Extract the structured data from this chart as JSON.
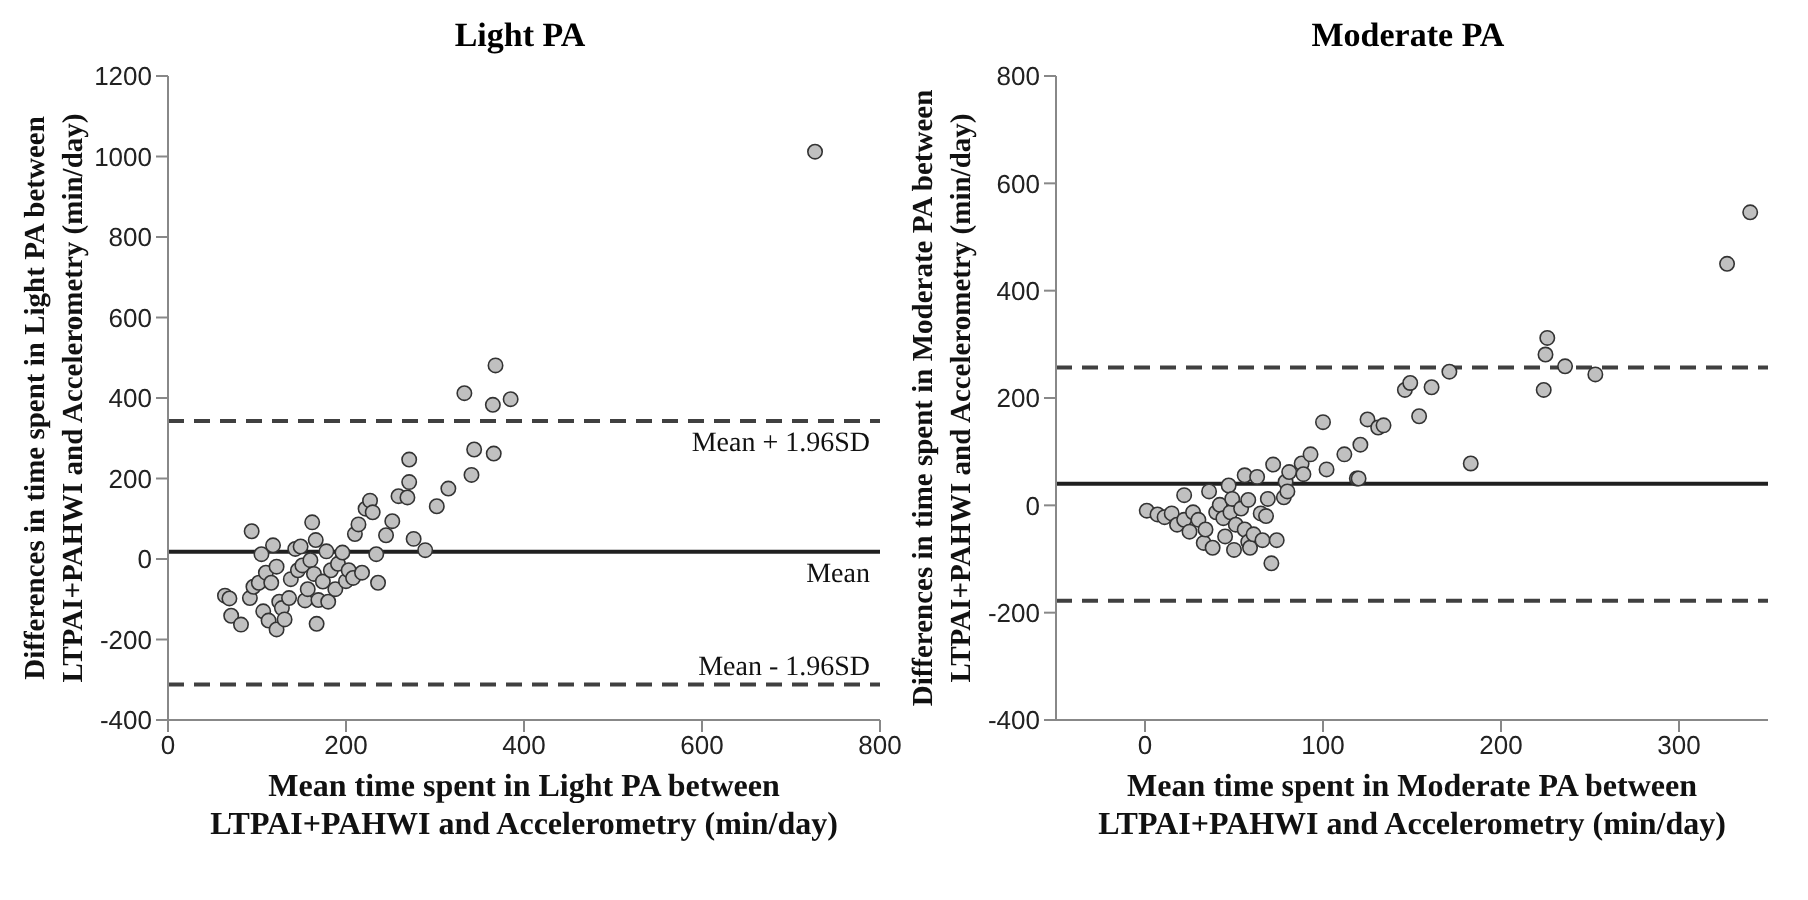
{
  "chart_data": [
    {
      "type": "scatter",
      "title": "Light PA",
      "xlabel": "Mean time spent in Light PA between\nLTPAI+PAHWI and Accelerometry (min/day)",
      "ylabel": "Differences in time spent in Light PA between\nLTPAI+PAHWI and Accelerometry (min/day)",
      "xlim": [
        0,
        800
      ],
      "xticks": [
        0,
        200,
        400,
        600,
        800
      ],
      "ylim": [
        -400,
        1200
      ],
      "yticks": [
        -400,
        -200,
        0,
        200,
        400,
        600,
        800,
        1000,
        1200
      ],
      "grid": false,
      "legend": false,
      "marker": "circle",
      "series": [
        {
          "color": "#c0c0c0",
          "x": [
            64,
            69,
            71,
            82,
            92,
            94,
            96,
            102,
            105,
            107,
            110,
            113,
            116,
            118,
            122,
            122,
            125,
            128,
            131,
            136,
            138,
            143,
            146,
            149,
            151,
            154,
            157,
            160,
            162,
            164,
            166,
            167,
            169,
            174,
            178,
            180,
            183,
            188,
            191,
            196,
            200,
            203,
            208,
            210,
            214,
            218,
            222,
            227,
            230,
            234,
            236,
            245,
            252,
            259,
            269,
            271,
            276,
            289,
            302,
            315,
            341,
            271,
            344,
            366,
            333,
            365,
            385,
            368,
            727
          ],
          "values": [
            -91,
            -98,
            -141,
            -163,
            -97,
            69,
            -69,
            -59,
            12,
            -130,
            -34,
            -153,
            -59,
            34,
            -19,
            -175,
            -106,
            -122,
            -150,
            -97,
            -50,
            25,
            -28,
            31,
            -16,
            -103,
            -75,
            -3,
            91,
            -37,
            47,
            -161,
            -102,
            -56,
            19,
            -106,
            -28,
            -75,
            -12,
            16,
            -55,
            -28,
            -47,
            62,
            86,
            -34,
            125,
            145,
            116,
            12,
            -59,
            59,
            94,
            156,
            153,
            191,
            50,
            22,
            131,
            175,
            209,
            247,
            272,
            262,
            412,
            383,
            397,
            481,
            1012
          ]
        }
      ],
      "ref_lines": [
        {
          "axis": "y",
          "value": 343,
          "label": "Mean + 1.96SD",
          "color": "#404040",
          "line_style": "dashed"
        },
        {
          "axis": "y",
          "value": 18,
          "label": "Mean",
          "color": "#202020",
          "line_style": "solid"
        },
        {
          "axis": "y",
          "value": -312,
          "label": "Mean - 1.96SD",
          "color": "#404040",
          "line_style": "dashed"
        }
      ]
    },
    {
      "type": "scatter",
      "title": "Moderate PA",
      "xlabel": "Mean time spent in Moderate PA between\nLTPAI+PAHWI and Accelerometry (min/day)",
      "ylabel": "Differences in time spent in Moderate PA between\nLTPAI+PAHWI and Accelerometry (min/day)",
      "xlim": [
        -50,
        350
      ],
      "xticks": [
        0,
        100,
        200,
        300
      ],
      "ylim": [
        -400,
        800
      ],
      "yticks": [
        -400,
        -200,
        0,
        200,
        400,
        600,
        800
      ],
      "grid": false,
      "legend": false,
      "marker": "circle",
      "series": [
        {
          "color": "#c0c0c0",
          "x": [
            1,
            7,
            11,
            15,
            18,
            22,
            22,
            25,
            27,
            30,
            33,
            34,
            36,
            38,
            40,
            42,
            44,
            45,
            47,
            48,
            49,
            50,
            51,
            54,
            56,
            56,
            58,
            58,
            59,
            61,
            63,
            65,
            66,
            68,
            69,
            71,
            72,
            74,
            78,
            79,
            80,
            81,
            88,
            89,
            93,
            100,
            102,
            112,
            119,
            120,
            121,
            125,
            131,
            134,
            146,
            149,
            154,
            161,
            171,
            183,
            224,
            225,
            226,
            236,
            253,
            327,
            340
          ],
          "values": [
            -10,
            -17,
            -22,
            -15,
            -36,
            19,
            -27,
            -49,
            -13,
            -27,
            -70,
            -45,
            26,
            -79,
            -13,
            1,
            -24,
            -58,
            37,
            -13,
            12,
            -83,
            -36,
            -6,
            56,
            -45,
            -68,
            10,
            -79,
            -54,
            53,
            -15,
            -65,
            -20,
            12,
            -108,
            76,
            -65,
            15,
            44,
            26,
            62,
            78,
            58,
            95,
            155,
            67,
            95,
            50,
            50,
            113,
            160,
            145,
            149,
            215,
            228,
            166,
            220,
            249,
            78,
            215,
            281,
            312,
            259,
            244,
            450,
            546
          ]
        }
      ],
      "ref_lines": [
        {
          "axis": "y",
          "value": 257,
          "color": "#404040",
          "line_style": "dashed"
        },
        {
          "axis": "y",
          "value": 40,
          "color": "#202020",
          "line_style": "solid"
        },
        {
          "axis": "y",
          "value": -178,
          "color": "#404040",
          "line_style": "dashed"
        }
      ]
    }
  ]
}
